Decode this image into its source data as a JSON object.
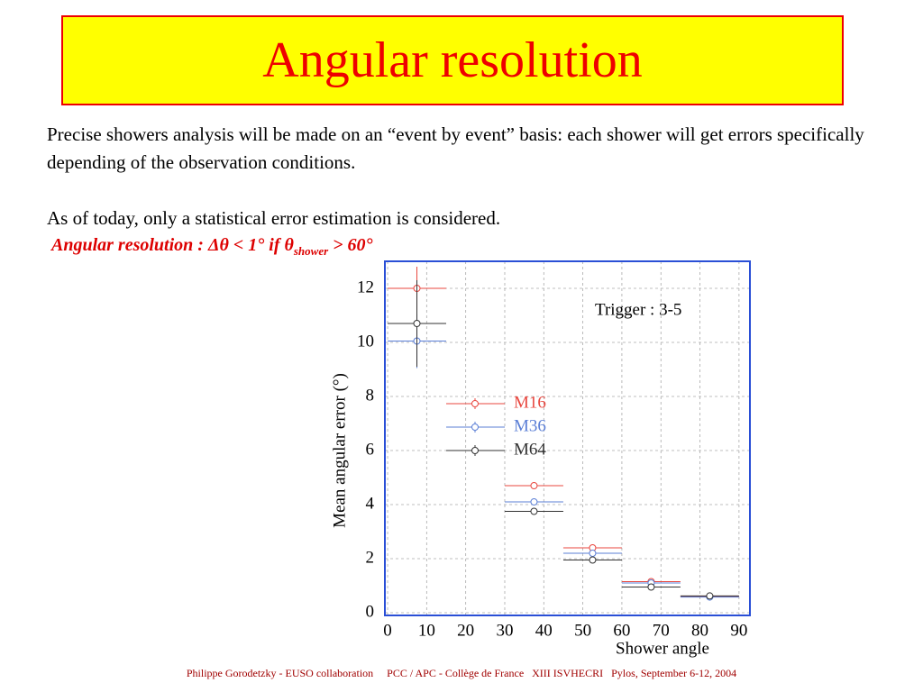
{
  "header": {
    "title": "Angular resolution"
  },
  "body": {
    "paragraph1": "Precise showers analysis will be made on an “event by event” basis: each shower will get errors specifically depending of the observation conditions.",
    "paragraph2": "As of today, only a statistical error estimation is considered.",
    "highlight": {
      "prefix": "Angular resolution :  Δθ < 1° if θ",
      "subscript": "shower",
      "suffix": " > 60°"
    }
  },
  "chart_data": {
    "type": "scatter",
    "annotation": "Trigger :  3-5",
    "xlabel": "Shower angle",
    "ylabel": "Mean angular error (°)",
    "x": [
      7.5,
      37.5,
      52.5,
      67.5,
      82.5
    ],
    "series": [
      {
        "name": "M16",
        "color": "#e8473f",
        "values": [
          12.0,
          4.7,
          2.4,
          1.15,
          0.6
        ],
        "xerr": [
          7.5,
          7.5,
          7.5,
          7.5,
          7.5
        ],
        "yerr": [
          0.8,
          0.1,
          0.1,
          0.05,
          0.05
        ]
      },
      {
        "name": "M36",
        "color": "#5b7fd6",
        "values": [
          10.05,
          4.1,
          2.2,
          1.1,
          0.58
        ],
        "xerr": [
          7.5,
          7.5,
          7.5,
          7.5,
          7.5
        ],
        "yerr": [
          1.0,
          0.1,
          0.1,
          0.05,
          0.05
        ]
      },
      {
        "name": "M64",
        "color": "#333333",
        "values": [
          10.7,
          3.75,
          1.95,
          0.95,
          0.62
        ],
        "xerr": [
          7.5,
          7.5,
          7.5,
          7.5,
          7.5
        ],
        "yerr": [
          1.6,
          0.1,
          0.1,
          0.05,
          0.05
        ]
      }
    ],
    "xlim": [
      -0.7,
      92.8
    ],
    "ylim": [
      -0.1,
      13
    ],
    "xticks": [
      0,
      10,
      20,
      30,
      40,
      50,
      60,
      70,
      80,
      90
    ],
    "yticks": [
      0,
      2,
      4,
      6,
      8,
      10,
      12
    ],
    "grid": true
  },
  "footer": {
    "text": "Philippe Gorodetzky - EUSO collaboration     PCC / APC - Collège de France   XIII ISVHECRI   Pylos, September 6-12, 2004"
  }
}
